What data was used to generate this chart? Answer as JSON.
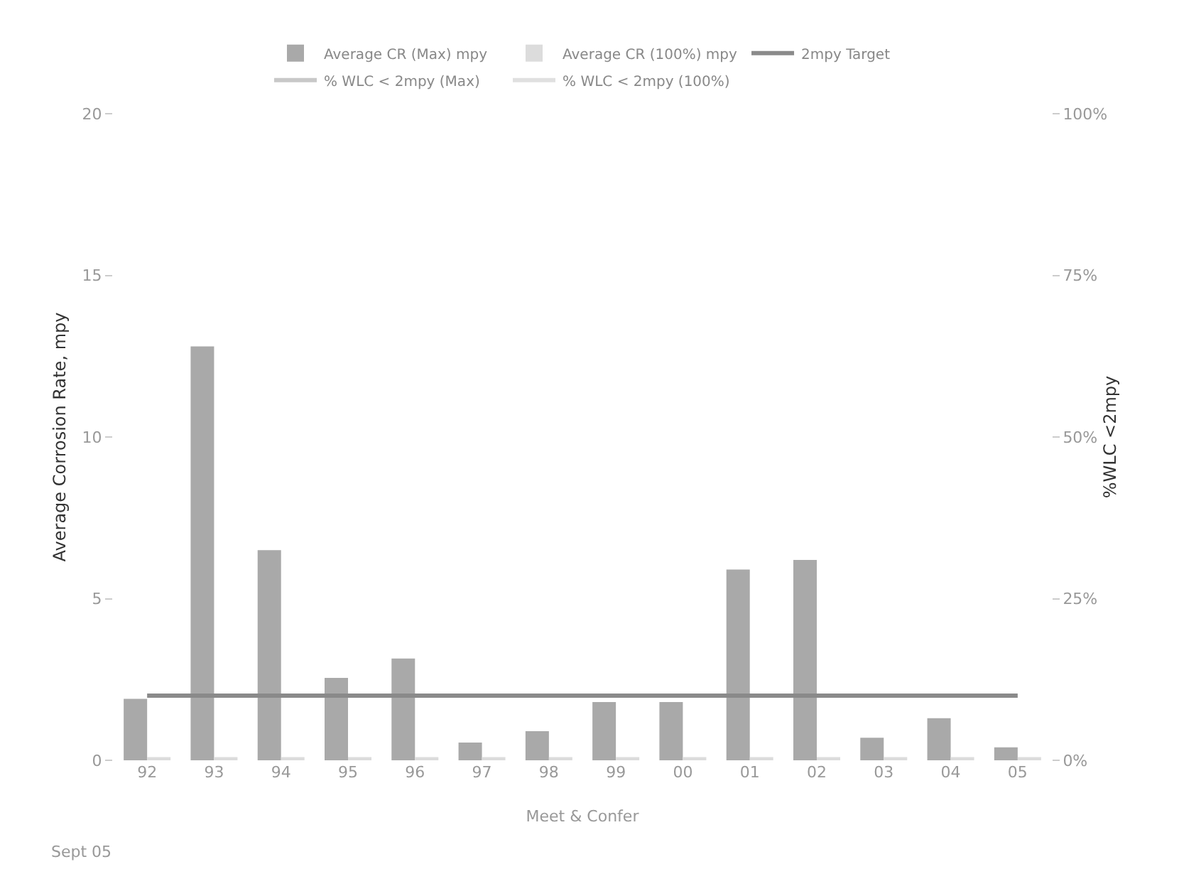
{
  "chart_data": {
    "type": "bar",
    "categories": [
      "92",
      "93",
      "94",
      "95",
      "96",
      "97",
      "98",
      "99",
      "00",
      "01",
      "02",
      "03",
      "04",
      "05"
    ],
    "series": [
      {
        "name": "Average CR (Max) mpy",
        "color": "#a9a9a9",
        "values": [
          1.9,
          12.8,
          6.5,
          2.55,
          3.15,
          0.55,
          0.9,
          1.8,
          1.8,
          5.9,
          6.2,
          0.7,
          1.3,
          0.4
        ]
      },
      {
        "name": "Average CR (100%) mpy",
        "color": "#dcdcdc",
        "values": [
          0.1,
          0.1,
          0.1,
          0.1,
          0.1,
          0.1,
          0.1,
          0.1,
          0.1,
          0.1,
          0.1,
          0.1,
          0.1,
          0.1
        ]
      },
      {
        "name": "2mpy Target",
        "type": "line",
        "color": "#8a8a8a",
        "values": [
          2,
          2,
          2,
          2,
          2,
          2,
          2,
          2,
          2,
          2,
          2,
          2,
          2,
          2
        ]
      },
      {
        "name": "% WLC < 2mpy (Max)",
        "type": "line",
        "axis": "y2",
        "color": "#c8c8c8",
        "values": [
          null,
          null,
          null,
          null,
          null,
          null,
          null,
          null,
          null,
          null,
          null,
          null,
          null,
          null
        ]
      },
      {
        "name": "% WLC < 2mpy (100%)",
        "type": "line",
        "axis": "y2",
        "color": "#e0e0e0",
        "values": [
          null,
          null,
          null,
          null,
          null,
          null,
          null,
          null,
          null,
          null,
          null,
          null,
          null,
          null
        ]
      }
    ],
    "xlabel": "Meet & Confer",
    "ylabel": "Average Corrosion Rate, mpy",
    "y2label": "%WLC <2mpy",
    "ylim": [
      0,
      20
    ],
    "yticks": [
      0,
      5,
      10,
      15,
      20
    ],
    "y2lim": [
      0,
      100
    ],
    "y2ticks": [
      {
        "value": 0,
        "label": "0%"
      },
      {
        "value": 25,
        "label": "25%"
      },
      {
        "value": 50,
        "label": "50%"
      },
      {
        "value": 75,
        "label": "75%"
      },
      {
        "value": 100,
        "label": "100%"
      }
    ],
    "annotations": [
      "Sept 05"
    ],
    "legend": "top",
    "grid": false,
    "marker": "none"
  }
}
